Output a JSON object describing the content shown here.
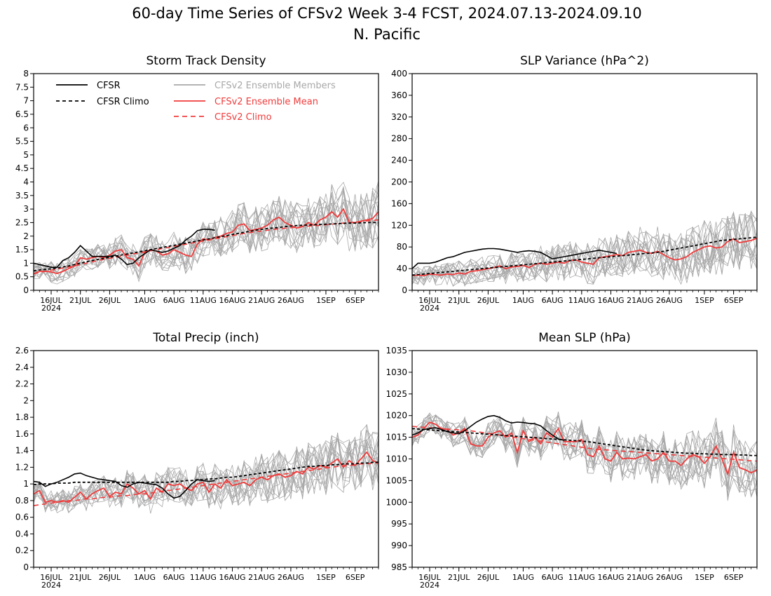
{
  "figure": {
    "title_line1": "60-day Time Series of CFSv2 Week 3-4 FCST, 2024.07.13-2024.09.10",
    "title_line2": "N. Pacific"
  },
  "legend": {
    "entries": [
      {
        "label": "CFSR",
        "color": "#000000",
        "dash": "solid"
      },
      {
        "label": "CFSR Climo",
        "color": "#000000",
        "dash": "dashed"
      },
      {
        "label": "CFSv2 Ensemble Members",
        "color": "#a8a8a8",
        "dash": "solid"
      },
      {
        "label": "CFSv2 Ensemble Mean",
        "color": "#f03c3c",
        "dash": "solid"
      },
      {
        "label": "CFSv2 Climo",
        "color": "#f03c3c",
        "dash": "dashed"
      }
    ]
  },
  "colors": {
    "cfsr": "#000000",
    "members": "#a8a8a8",
    "mean": "#f03c3c"
  },
  "x_axis": {
    "start_date": "2024.07.13",
    "days": 60,
    "ticks": [
      {
        "day": 3,
        "label": "16JUL"
      },
      {
        "day": 8,
        "label": "21JUL"
      },
      {
        "day": 13,
        "label": "26JUL"
      },
      {
        "day": 19,
        "label": "1AUG"
      },
      {
        "day": 24,
        "label": "6AUG"
      },
      {
        "day": 29,
        "label": "11AUG"
      },
      {
        "day": 34,
        "label": "16AUG"
      },
      {
        "day": 39,
        "label": "21AUG"
      },
      {
        "day": 44,
        "label": "26AUG"
      },
      {
        "day": 50,
        "label": "1SEP"
      },
      {
        "day": 55,
        "label": "6SEP"
      }
    ],
    "year_label": "2024"
  },
  "chart_data": [
    {
      "type": "line",
      "title": "Storm Track Density",
      "ylim": [
        0,
        8
      ],
      "yticks": [
        "0",
        "0.5",
        "1",
        "1.5",
        "2",
        "2.5",
        "3",
        "3.5",
        "4",
        "4.5",
        "5",
        "5.5",
        "6",
        "6.5",
        "7",
        "7.5",
        "8"
      ],
      "show_legend": true,
      "series": {
        "cfsr": [
          1.0,
          0.95,
          0.9,
          0.85,
          0.85,
          1.1,
          1.2,
          1.4,
          1.65,
          1.45,
          1.25,
          1.25,
          1.25,
          1.25,
          1.3,
          1.15,
          0.95,
          1.0,
          1.2,
          1.35,
          1.5,
          1.45,
          1.4,
          1.45,
          1.55,
          1.65,
          1.85,
          2.0,
          2.2,
          2.25,
          2.25,
          2.22
        ],
        "cfsr_climo": [
          0.72,
          0.75,
          0.77,
          0.79,
          0.82,
          0.86,
          0.9,
          0.95,
          1.0,
          1.05,
          1.1,
          1.14,
          1.18,
          1.22,
          1.26,
          1.3,
          1.34,
          1.38,
          1.42,
          1.46,
          1.5,
          1.54,
          1.58,
          1.62,
          1.66,
          1.7,
          1.74,
          1.78,
          1.82,
          1.86,
          1.9,
          1.94,
          1.98,
          2.02,
          2.06,
          2.1,
          2.14,
          2.18,
          2.22,
          2.25,
          2.28,
          2.3,
          2.32,
          2.35,
          2.37,
          2.39,
          2.4,
          2.41,
          2.42,
          2.43,
          2.44,
          2.45,
          2.46,
          2.47,
          2.48,
          2.48,
          2.49,
          2.5,
          2.5,
          2.5
        ],
        "mean": [
          0.6,
          0.7,
          0.7,
          0.68,
          0.62,
          0.7,
          0.8,
          0.9,
          1.2,
          1.15,
          1.2,
          1.25,
          1.2,
          1.3,
          1.45,
          1.5,
          1.2,
          1.15,
          0.9,
          1.4,
          1.5,
          1.45,
          1.3,
          1.35,
          1.5,
          1.4,
          1.3,
          1.25,
          1.7,
          1.9,
          1.85,
          1.95,
          2.0,
          2.1,
          2.15,
          2.4,
          2.45,
          2.2,
          2.25,
          2.3,
          2.4,
          2.6,
          2.7,
          2.5,
          2.4,
          2.3,
          2.35,
          2.5,
          2.4,
          2.6,
          2.7,
          2.9,
          2.7,
          3.0,
          2.5,
          2.5,
          2.55,
          2.6,
          2.65,
          2.9
        ],
        "cfsv2_climo": [
          0.62,
          0.66,
          0.7,
          0.74,
          0.78,
          0.82,
          0.86,
          0.9,
          0.95,
          1.0,
          1.05,
          1.1,
          1.14,
          1.18,
          1.22,
          1.26,
          1.3,
          1.34,
          1.38,
          1.42,
          1.46,
          1.5,
          1.54,
          1.58,
          1.62,
          1.66,
          1.7,
          1.74,
          1.78,
          1.82,
          1.86,
          1.9,
          1.94,
          1.98,
          2.02,
          2.06,
          2.1,
          2.13,
          2.16,
          2.19,
          2.22,
          2.25,
          2.27,
          2.29,
          2.31,
          2.33,
          2.35,
          2.37,
          2.38,
          2.4,
          2.42,
          2.44,
          2.46,
          2.48,
          2.5,
          2.52,
          2.54,
          2.56,
          2.58,
          2.6
        ]
      }
    },
    {
      "type": "line",
      "title": "SLP Variance (hPa^2)",
      "ylim": [
        0,
        400
      ],
      "yticks": [
        "0",
        "40",
        "80",
        "120",
        "160",
        "200",
        "240",
        "280",
        "320",
        "360",
        "400"
      ],
      "show_legend": false,
      "series": {
        "cfsr": [
          40,
          50,
          50,
          50,
          52,
          56,
          60,
          62,
          66,
          70,
          72,
          74,
          76,
          77,
          77,
          76,
          74,
          72,
          70,
          72,
          73,
          72,
          70,
          64,
          58,
          60,
          62,
          64,
          66,
          68,
          70,
          72,
          74,
          72,
          70,
          68
        ],
        "cfsr_climo": [
          28,
          29,
          30,
          31,
          32,
          33,
          34,
          35,
          36,
          37,
          38,
          39,
          40,
          41,
          42,
          43,
          44,
          45,
          46,
          47,
          48,
          49,
          50,
          51,
          52,
          53,
          54,
          55,
          56,
          57,
          58,
          59,
          60,
          61,
          62,
          63,
          64,
          65,
          66,
          67,
          68,
          69,
          70,
          72,
          74,
          76,
          78,
          80,
          82,
          84,
          86,
          88,
          90,
          92,
          93,
          94,
          95,
          96,
          97,
          98
        ],
        "mean": [
          27,
          28,
          27,
          30,
          29,
          28,
          30,
          29,
          32,
          30,
          35,
          36,
          38,
          40,
          42,
          45,
          40,
          43,
          44,
          46,
          42,
          48,
          50,
          48,
          50,
          52,
          50,
          55,
          56,
          52,
          50,
          48,
          60,
          62,
          64,
          66,
          64,
          70,
          72,
          74,
          70,
          68,
          72,
          66,
          60,
          56,
          58,
          62,
          70,
          75,
          80,
          82,
          78,
          80,
          90,
          95,
          88,
          90,
          92,
          96
        ]
      }
    },
    {
      "type": "line",
      "title": "Total Precip (inch)",
      "ylim": [
        0,
        2.6
      ],
      "yticks": [
        "0",
        "0.2",
        "0.4",
        "0.6",
        "0.8",
        "1",
        "1.2",
        "1.4",
        "1.6",
        "1.8",
        "2",
        "2.2",
        "2.4",
        "2.6"
      ],
      "show_legend": false,
      "series": {
        "cfsr": [
          1.03,
          1.02,
          0.97,
          1.0,
          1.02,
          1.05,
          1.08,
          1.12,
          1.13,
          1.1,
          1.08,
          1.06,
          1.05,
          1.04,
          1.03,
          0.98,
          0.96,
          1.0,
          1.02,
          1.01,
          1.0,
          0.99,
          0.95,
          0.88,
          0.83,
          0.85,
          0.92,
          1.0,
          1.05,
          1.04,
          1.03,
          1.04
        ],
        "cfsr_climo": [
          0.99,
          1.0,
          1.0,
          1.0,
          1.01,
          1.01,
          1.01,
          1.02,
          1.02,
          1.02,
          1.02,
          1.02,
          1.02,
          1.02,
          1.02,
          1.02,
          1.02,
          1.02,
          1.02,
          1.02,
          1.02,
          1.02,
          1.02,
          1.02,
          1.03,
          1.03,
          1.04,
          1.04,
          1.05,
          1.05,
          1.06,
          1.06,
          1.07,
          1.08,
          1.08,
          1.09,
          1.1,
          1.11,
          1.12,
          1.13,
          1.14,
          1.15,
          1.16,
          1.17,
          1.18,
          1.19,
          1.2,
          1.21,
          1.21,
          1.22,
          1.22,
          1.23,
          1.23,
          1.24,
          1.24,
          1.24,
          1.25,
          1.25,
          1.26,
          1.26
        ],
        "mean": [
          0.88,
          0.92,
          0.78,
          0.8,
          0.78,
          0.8,
          0.78,
          0.84,
          0.9,
          0.82,
          0.88,
          0.92,
          0.95,
          0.85,
          0.9,
          0.88,
          1.0,
          0.95,
          0.88,
          0.92,
          0.82,
          0.95,
          0.9,
          1.0,
          0.98,
          1.0,
          0.95,
          0.92,
          1.0,
          1.02,
          0.9,
          1.0,
          0.95,
          1.05,
          0.98,
          1.0,
          1.02,
          0.98,
          1.05,
          1.08,
          1.05,
          1.1,
          1.12,
          1.08,
          1.1,
          1.15,
          1.12,
          1.2,
          1.18,
          1.22,
          1.2,
          1.25,
          1.3,
          1.2,
          1.28,
          1.22,
          1.3,
          1.38,
          1.28,
          1.25
        ],
        "cfsv2_climo": [
          0.74,
          0.75,
          0.76,
          0.77,
          0.78,
          0.79,
          0.8,
          0.8,
          0.81,
          0.82,
          0.82,
          0.83,
          0.84,
          0.84,
          0.85,
          0.86,
          0.86,
          0.87,
          0.88,
          0.88,
          0.89,
          0.9,
          0.91,
          0.92,
          0.93,
          0.94,
          0.95,
          0.96,
          0.97,
          0.98,
          0.99,
          1.0,
          1.01,
          1.02,
          1.03,
          1.04,
          1.05,
          1.06,
          1.07,
          1.08,
          1.09,
          1.1,
          1.11,
          1.12,
          1.13,
          1.14,
          1.15,
          1.16,
          1.17,
          1.18,
          1.19,
          1.2,
          1.21,
          1.22,
          1.22,
          1.23,
          1.24,
          1.24,
          1.25,
          1.25
        ]
      }
    },
    {
      "type": "line",
      "title": "Mean SLP (hPa)",
      "ylim": [
        985,
        1035
      ],
      "yticks": [
        "985",
        "990",
        "995",
        "1000",
        "1005",
        "1010",
        "1015",
        "1020",
        "1025",
        "1030",
        "1035"
      ],
      "show_legend": false,
      "series": {
        "cfsr": [
          1015.5,
          1016,
          1016.8,
          1017,
          1017.2,
          1016.8,
          1016.3,
          1016,
          1015.8,
          1016.5,
          1017.5,
          1018.5,
          1019.2,
          1019.8,
          1020,
          1019.6,
          1018.8,
          1018.3,
          1018.5,
          1018.4,
          1018.2,
          1018.1,
          1017.6,
          1016.5,
          1015.5,
          1014.6,
          1014.3
        ],
        "cfsr_climo": [
          1017,
          1016.9,
          1016.8,
          1016.7,
          1016.6,
          1016.5,
          1016.4,
          1016.3,
          1016.2,
          1016.1,
          1016,
          1015.9,
          1015.8,
          1015.7,
          1015.6,
          1015.5,
          1015.4,
          1015.3,
          1015.2,
          1015.1,
          1015,
          1014.9,
          1014.8,
          1014.7,
          1014.6,
          1014.5,
          1014.4,
          1014.3,
          1014.2,
          1014.1,
          1014,
          1013.8,
          1013.6,
          1013.4,
          1013.2,
          1013,
          1012.8,
          1012.6,
          1012.4,
          1012.2,
          1012,
          1011.9,
          1011.8,
          1011.7,
          1011.6,
          1011.5,
          1011.4,
          1011.3,
          1011.3,
          1011.2,
          1011.2,
          1011.1,
          1011.1,
          1011,
          1011,
          1011,
          1010.9,
          1010.9,
          1010.8,
          1010.8
        ],
        "mean": [
          1015,
          1015.5,
          1017,
          1018.5,
          1018,
          1017,
          1016.8,
          1015.5,
          1016,
          1017,
          1013.5,
          1013,
          1013,
          1015,
          1016,
          1016.5,
          1015,
          1016,
          1011.5,
          1016.5,
          1014,
          1015,
          1013.5,
          1016,
          1015,
          1017,
          1014,
          1014,
          1014,
          1014.5,
          1011,
          1010.5,
          1013,
          1010,
          1009.5,
          1011.5,
          1010,
          1010.2,
          1010,
          1010.5,
          1011,
          1009.5,
          1010,
          1011.5,
          1009.5,
          1009.5,
          1008.5,
          1010,
          1011,
          1010.5,
          1009,
          1010.5,
          1013,
          1010,
          1006.5,
          1011.5,
          1008,
          1007.5,
          1006.8,
          1007.5
        ],
        "cfsv2_climo": [
          1017.5,
          1017.4,
          1017.3,
          1017.2,
          1017.1,
          1017,
          1016.9,
          1016.8,
          1016.7,
          1016.6,
          1016.5,
          1016.3,
          1016.1,
          1015.9,
          1015.7,
          1015.5,
          1015.3,
          1015.1,
          1014.9,
          1014.7,
          1014.5,
          1014.3,
          1014.1,
          1013.9,
          1013.7,
          1013.5,
          1013.3,
          1013.1,
          1012.9,
          1012.7,
          1012.5,
          1012.3,
          1012.2,
          1012.1,
          1012,
          1011.9,
          1011.8,
          1011.7,
          1011.6,
          1011.5,
          1011.4,
          1011.3,
          1011.2,
          1011.1,
          1011,
          1010.9,
          1010.8,
          1010.7,
          1010.6,
          1010.5,
          1010.4,
          1010.3,
          1010.2,
          1010.1,
          1010,
          1009.9,
          1009.8,
          1009.7,
          1009.6,
          1009.5
        ]
      }
    }
  ]
}
